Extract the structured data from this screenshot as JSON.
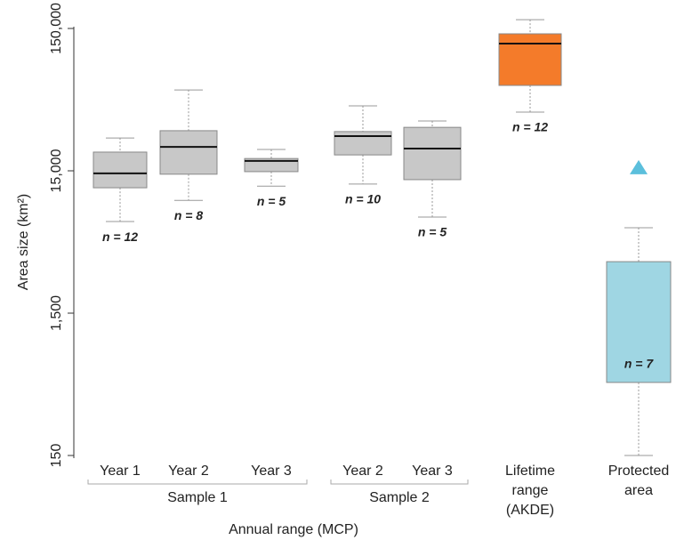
{
  "chart_data": {
    "type": "box",
    "y_label": "Area size (km²)",
    "x_label": "Annual range (MCP)",
    "log_y": true,
    "ylim": [
      150,
      150000
    ],
    "yticks": [
      {
        "value": 150000,
        "label": "150,000"
      },
      {
        "value": 15000,
        "label": "15,000"
      },
      {
        "value": 1500,
        "label": "1,500"
      },
      150
    ],
    "categories": [
      [
        "Year 1"
      ],
      [
        "Year 2"
      ],
      [
        "Year 3"
      ],
      [
        "Year 2"
      ],
      [
        "Year 3"
      ],
      [
        "Lifetime",
        "range",
        "(AKDE)"
      ],
      [
        "Protected",
        "area"
      ]
    ],
    "groups": [
      {
        "name": "Sample 1",
        "members": [
          0,
          1,
          2
        ]
      },
      {
        "name": "Sample 2",
        "members": [
          3,
          4
        ]
      }
    ],
    "series": [
      {
        "whisker_low": 6600,
        "q1": 11400,
        "median": 14400,
        "q3": 20300,
        "whisker_high": 25500,
        "n_label": "n = 12",
        "color": "#c8c8c8"
      },
      {
        "whisker_low": 9300,
        "q1": 14200,
        "median": 22100,
        "q3": 28700,
        "whisker_high": 55500,
        "n_label": "n = 8",
        "color": "#c8c8c8"
      },
      {
        "whisker_low": 11700,
        "q1": 14800,
        "median": 17600,
        "q3": 18300,
        "whisker_high": 21200,
        "n_label": "n = 5",
        "color": "#c8c8c8"
      },
      {
        "whisker_low": 12100,
        "q1": 19400,
        "median": 26300,
        "q3": 28300,
        "whisker_high": 42900,
        "n_label": "n = 10",
        "color": "#c8c8c8"
      },
      {
        "whisker_low": 7100,
        "q1": 13000,
        "median": 21500,
        "q3": 30300,
        "whisker_high": 33600,
        "n_label": "n = 5",
        "color": "#c8c8c8"
      },
      {
        "whisker_low": 38800,
        "q1": 59700,
        "median": 117500,
        "q3": 137600,
        "whisker_high": 173000,
        "n_label": "n = 12",
        "color": "#f47b2a"
      },
      {
        "whisker_low": 150,
        "q1": 489,
        "median": null,
        "q3": 3450,
        "whisker_high": 5970,
        "outliers": [
          15700
        ],
        "n_label": "n = 7",
        "color": "#9fd6e3",
        "outlier_color": "#5bbfdc"
      }
    ]
  }
}
